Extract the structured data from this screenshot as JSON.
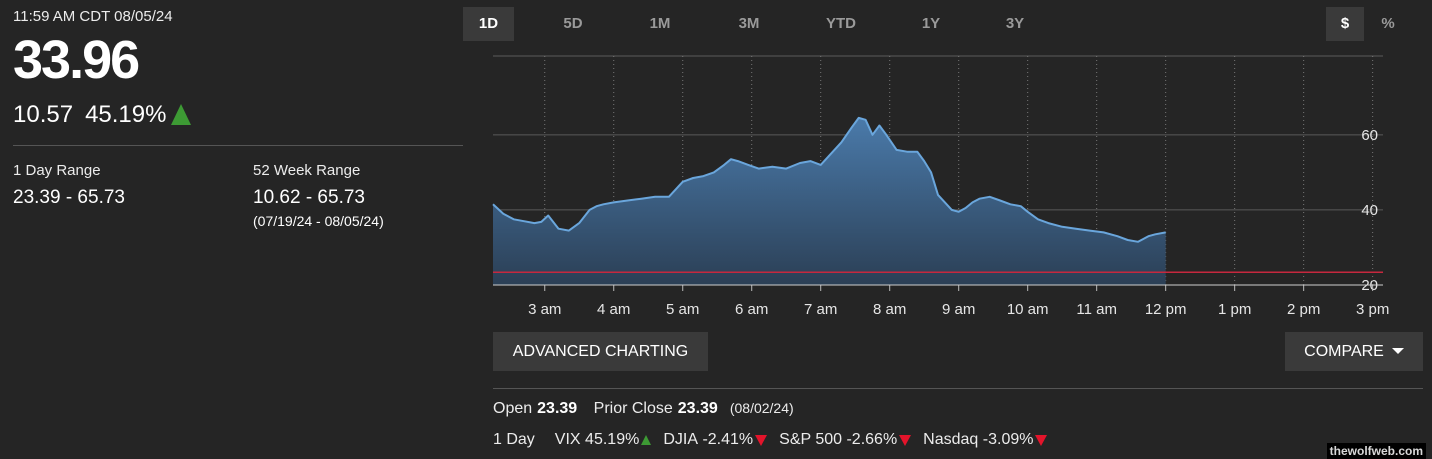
{
  "quote": {
    "timestamp": "11:59 AM CDT 08/05/24",
    "price": "33.96",
    "change": "10.57",
    "change_pct": "45.19%",
    "direction": "up"
  },
  "ranges": {
    "day_label": "1 Day Range",
    "day_value": "23.39 - 65.73",
    "week52_label": "52 Week Range",
    "week52_value": "10.62 - 65.73",
    "week52_dates": "(07/19/24 - 08/05/24)"
  },
  "tabs": [
    {
      "label": "1D",
      "active": true
    },
    {
      "label": "5D",
      "active": false
    },
    {
      "label": "1M",
      "active": false
    },
    {
      "label": "3M",
      "active": false
    },
    {
      "label": "YTD",
      "active": false
    },
    {
      "label": "1Y",
      "active": false
    },
    {
      "label": "3Y",
      "active": false
    }
  ],
  "units": {
    "dollar": "$",
    "percent": "%",
    "active": "dollar"
  },
  "buttons": {
    "advanced": "ADVANCED CHARTING",
    "compare": "COMPARE"
  },
  "stats": {
    "open_label": "Open",
    "open_value": "23.39",
    "prior_label": "Prior Close",
    "prior_value": "23.39",
    "prior_date": "(08/02/24)"
  },
  "indices": {
    "label": "1 Day",
    "items": [
      {
        "name": "VIX",
        "change": "45.19%",
        "direction": "up"
      },
      {
        "name": "DJIA",
        "change": "-2.41%",
        "direction": "down"
      },
      {
        "name": "S&P 500",
        "change": "-2.66%",
        "direction": "down"
      },
      {
        "name": "Nasdaq",
        "change": "-3.09%",
        "direction": "down"
      }
    ]
  },
  "watermark": "thewolfweb.com",
  "colors": {
    "line": "#6aa6dc",
    "area_top": "#4a7aaa",
    "area_bottom": "#2b3f55",
    "prior_close": "#c6283e",
    "up": "#3d9a34",
    "down": "#e3142b"
  },
  "chart_data": {
    "type": "area",
    "x_ticks": [
      "3 am",
      "4 am",
      "5 am",
      "6 am",
      "7 am",
      "8 am",
      "9 am",
      "10 am",
      "11 am",
      "12 pm",
      "1 pm",
      "2 pm",
      "3 pm"
    ],
    "y_ticks": [
      20,
      40,
      60
    ],
    "ylim": [
      20,
      81
    ],
    "xlim": [
      2.25,
      15.15
    ],
    "prior_close": 23.39,
    "grid": true,
    "series": [
      {
        "x": [
          2.25,
          2.4,
          2.55,
          2.7,
          2.85,
          2.95,
          3.05,
          3.2,
          3.35,
          3.5,
          3.65,
          3.75,
          3.85,
          4.0,
          4.2,
          4.4,
          4.6,
          4.8,
          5.0,
          5.15,
          5.3,
          5.45,
          5.6,
          5.7,
          5.8,
          5.95,
          6.1,
          6.3,
          6.5,
          6.7,
          6.85,
          7.0,
          7.15,
          7.3,
          7.45,
          7.55,
          7.65,
          7.75,
          7.85,
          7.95,
          8.1,
          8.25,
          8.4,
          8.5,
          8.6,
          8.7,
          8.8,
          8.9,
          9.0,
          9.1,
          9.2,
          9.3,
          9.45,
          9.6,
          9.75,
          9.9,
          10.0,
          10.15,
          10.3,
          10.5,
          10.7,
          10.9,
          11.1,
          11.3,
          11.45,
          11.6,
          11.75,
          11.85,
          12.0
        ],
        "y": [
          41.5,
          39.0,
          37.5,
          37.0,
          36.5,
          36.8,
          38.5,
          35.0,
          34.5,
          36.5,
          40.0,
          41.0,
          41.5,
          42.0,
          42.5,
          43.0,
          43.5,
          43.5,
          47.5,
          48.5,
          49.0,
          50.0,
          52.0,
          53.5,
          53.0,
          52.0,
          51.0,
          51.5,
          51.0,
          52.5,
          53.0,
          52.0,
          55.0,
          58.0,
          62.0,
          64.5,
          64.0,
          60.0,
          62.5,
          60.0,
          56.0,
          55.5,
          55.5,
          53.0,
          50.0,
          44.0,
          42.0,
          40.0,
          39.5,
          40.5,
          42.0,
          43.0,
          43.5,
          42.5,
          41.5,
          41.0,
          39.5,
          37.5,
          36.5,
          35.5,
          35.0,
          34.5,
          34.0,
          33.0,
          32.0,
          31.5,
          33.0,
          33.5,
          34.0
        ]
      }
    ]
  }
}
